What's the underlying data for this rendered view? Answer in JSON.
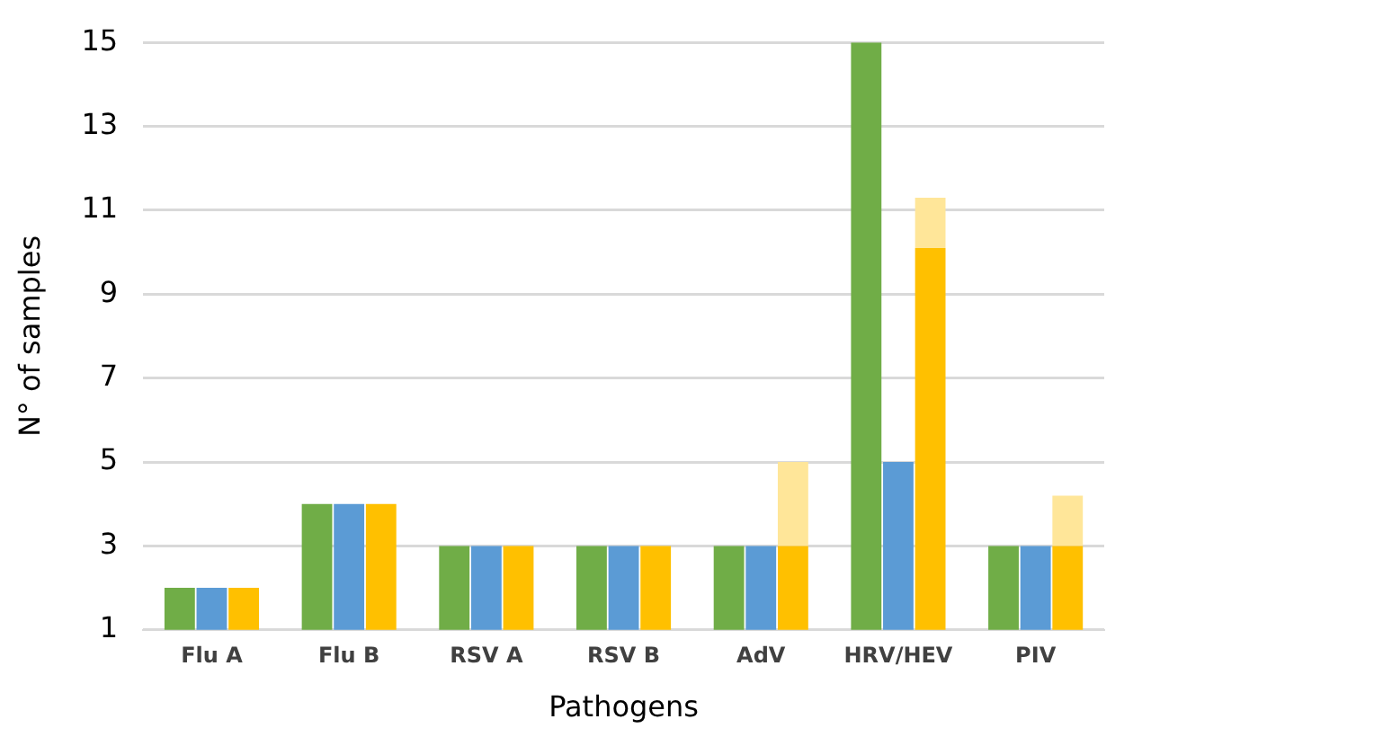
{
  "chart_data": {
    "type": "bar",
    "xlabel": "Pathogens",
    "ylabel": "N° of samples",
    "categories": [
      "Flu A",
      "Flu B",
      "RSV A",
      "RSV B",
      "AdV",
      "HRV/HEV",
      "PIV"
    ],
    "series": [
      {
        "color": "#70ad47",
        "values": [
          2,
          4,
          3,
          3,
          3,
          15,
          3
        ]
      },
      {
        "color": "#5b9bd5",
        "values": [
          2,
          4,
          3,
          3,
          3,
          5,
          3
        ]
      },
      {
        "color": "#ffc000",
        "values": [
          2,
          4,
          3,
          3,
          3,
          10.1,
          3
        ]
      },
      {
        "color": "#ffe699",
        "values": [
          null,
          null,
          null,
          null,
          2,
          1.2,
          1.2
        ],
        "base": [
          null,
          null,
          null,
          null,
          3,
          10.1,
          3
        ]
      }
    ],
    "ylim": [
      1,
      15
    ],
    "yticks": [
      1,
      3,
      5,
      7,
      9,
      11,
      13,
      15
    ],
    "grid": "y",
    "legend": false
  }
}
